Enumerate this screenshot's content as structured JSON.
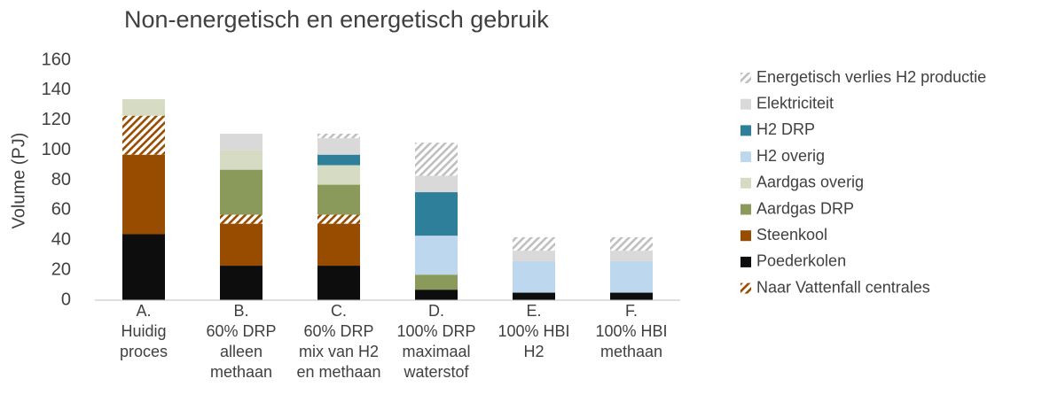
{
  "chart_data": {
    "type": "stacked_bar",
    "title": "Non-energetisch en energetisch gebruik",
    "y_label": "Volume (PJ)",
    "categories": [
      [
        "A.",
        "Huidig",
        "proces"
      ],
      [
        "B.",
        "60% DRP",
        "alleen",
        "methaan"
      ],
      [
        "C.",
        "60% DRP",
        "mix van H2",
        "en methaan"
      ],
      [
        "D.",
        "100% DRP",
        "maximaal",
        "waterstof"
      ],
      [
        "E.",
        "100% HBI",
        "H2"
      ],
      [
        "F.",
        "100% HBI",
        "methaan"
      ]
    ],
    "series": [
      {
        "name": "Energetisch verlies H2 productie",
        "color": "#bfbfbf",
        "pattern": "hatch",
        "values": [
          0,
          0,
          3,
          22,
          9,
          9
        ]
      },
      {
        "name": "Elektriciteit",
        "color": "#d9d9d9",
        "values": [
          0,
          11,
          11,
          11,
          7,
          7
        ]
      },
      {
        "name": "H2 DRP",
        "color": "#2e7f9a",
        "values": [
          0,
          0,
          7,
          29,
          0,
          0
        ]
      },
      {
        "name": "H2 overig",
        "color": "#bdd7ee",
        "values": [
          0,
          0,
          0,
          26,
          21,
          21
        ]
      },
      {
        "name": "Aardgas overig",
        "color": "#d6dcc4",
        "values": [
          11,
          13,
          13,
          0,
          0,
          0
        ]
      },
      {
        "name": "Aardgas DRP",
        "color": "#8a9a5b",
        "values": [
          0,
          30,
          20,
          10,
          0,
          0
        ]
      },
      {
        "name": "Steenkool",
        "color": "#974c00",
        "values": [
          53,
          28,
          28,
          0,
          0,
          0
        ]
      },
      {
        "name": "Poederkolen",
        "color": "#0d0d0d",
        "values": [
          44,
          23,
          23,
          7,
          5,
          5
        ]
      },
      {
        "name": "Naar Vattenfall centrales",
        "color": "#974c00",
        "pattern": "hatch",
        "values": [
          26,
          6,
          6,
          0,
          0,
          0
        ]
      }
    ],
    "stack_order": [
      7,
      6,
      8,
      5,
      4,
      3,
      2,
      1,
      0
    ],
    "ylim": [
      0,
      160
    ],
    "yticks": [
      0,
      20,
      40,
      60,
      80,
      100,
      120,
      140,
      160
    ],
    "grid": false,
    "legend": "right"
  }
}
